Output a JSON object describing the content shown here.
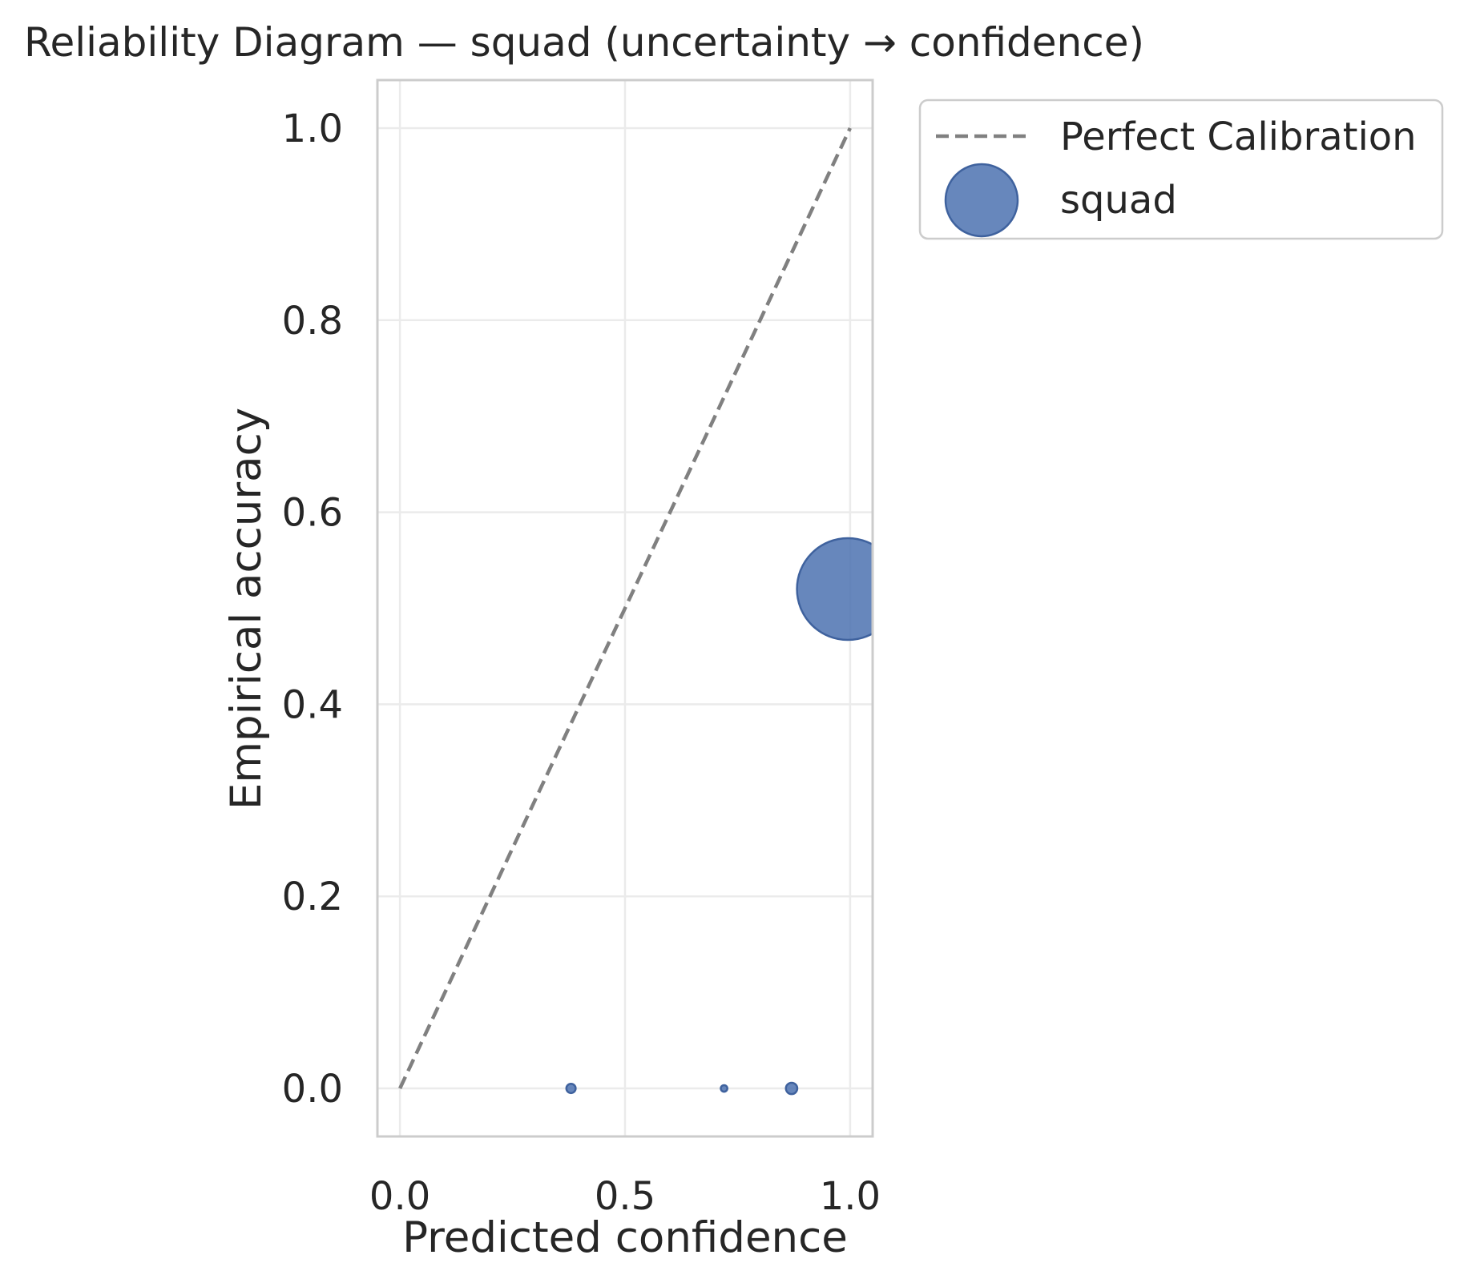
{
  "chart_data": {
    "type": "scatter",
    "title": "Reliability Diagram — squad (uncertainty → confidence)",
    "xlabel": "Predicted confidence",
    "ylabel": "Empirical accuracy",
    "xlim": [
      -0.05,
      1.05
    ],
    "ylim": [
      -0.05,
      1.05
    ],
    "x_ticks": [
      0.0,
      0.5,
      1.0
    ],
    "x_tick_labels": [
      "0.0",
      "0.5",
      "1.0"
    ],
    "y_ticks": [
      0.0,
      0.2,
      0.4,
      0.6,
      0.8,
      1.0
    ],
    "y_tick_labels": [
      "0.0",
      "0.2",
      "0.4",
      "0.6",
      "0.8",
      "1.0"
    ],
    "grid": true,
    "legend_position": "outside-upper-right",
    "reference_line": {
      "name": "Perfect Calibration",
      "x": [
        0.0,
        1.0
      ],
      "y": [
        0.0,
        1.0
      ],
      "color": "#808080",
      "style": "dashed"
    },
    "series": [
      {
        "name": "squad",
        "color": "#4c72b0",
        "points": [
          {
            "x": 0.38,
            "y": 0.0,
            "count": 2
          },
          {
            "x": 0.72,
            "y": 0.0,
            "count": 1
          },
          {
            "x": 0.87,
            "y": 0.0,
            "count": 3
          },
          {
            "x": 0.995,
            "y": 0.52,
            "count": 240
          }
        ]
      }
    ]
  }
}
